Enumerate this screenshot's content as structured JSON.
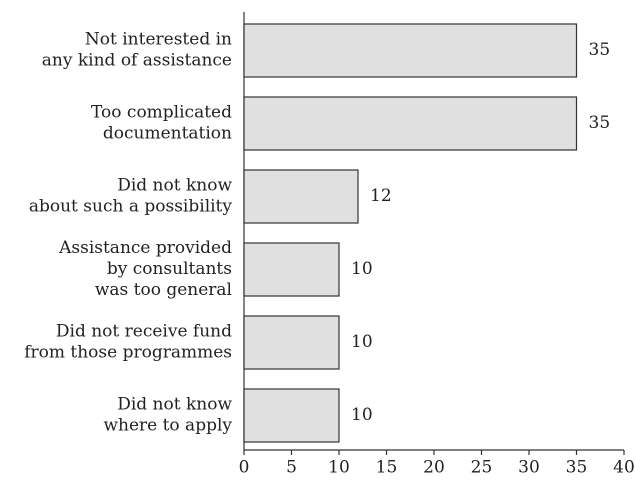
{
  "chart_data": {
    "type": "bar",
    "orientation": "horizontal",
    "categories": [
      [
        "Not interested in",
        "any kind of assistance"
      ],
      [
        "Too complicated",
        "documentation"
      ],
      [
        "Did not know",
        "about such a possibility"
      ],
      [
        "Assistance provided",
        "by consultants",
        "was too general"
      ],
      [
        "Did not receive fund",
        "from those programmes"
      ],
      [
        "Did not know",
        "where to apply"
      ]
    ],
    "values": [
      35,
      35,
      12,
      10,
      10,
      10
    ],
    "color": "#e0e0e0",
    "xlim": [
      0,
      40
    ],
    "xticks": [
      0,
      5,
      10,
      15,
      20,
      25,
      30,
      35,
      40
    ],
    "grid": false
  }
}
